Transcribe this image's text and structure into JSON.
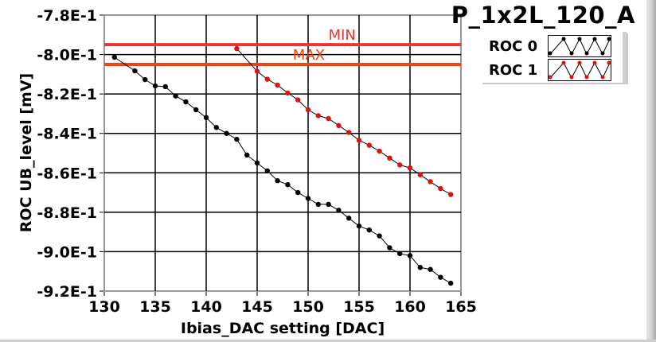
{
  "chart_data": {
    "type": "line",
    "title": "P_1x2L_120_A",
    "xlabel": "Ibias_DAC setting [DAC]",
    "ylabel": "ROC UB_level [mV]",
    "xlim": [
      130,
      165
    ],
    "ylim": [
      -0.92,
      -0.78
    ],
    "grid": true,
    "x_ticks": [
      130,
      135,
      140,
      145,
      150,
      155,
      160,
      165
    ],
    "x_tick_labels": [
      "130",
      "135",
      "140",
      "145",
      "150",
      "155",
      "160",
      "165"
    ],
    "y_ticks": [
      -0.78,
      -0.8,
      -0.82,
      -0.84,
      -0.86,
      -0.88,
      -0.9,
      -0.92
    ],
    "y_tick_labels": [
      "-7.8E-1",
      "-8.0E-1",
      "-8.2E-1",
      "-8.4E-1",
      "-8.6E-1",
      "-8.8E-1",
      "-9.0E-1",
      "-9.2E-1"
    ],
    "legend_position": "top-right",
    "series": [
      {
        "name": "ROC 0",
        "color": "#000000",
        "x": [
          131,
          133,
          134,
          135,
          136,
          137,
          138,
          139,
          140,
          141,
          142,
          143,
          144,
          145,
          146,
          147,
          148,
          149,
          150,
          151,
          152,
          153,
          154,
          155,
          156,
          157,
          158,
          159,
          160,
          161,
          162,
          163,
          164
        ],
        "y": [
          -0.8014,
          -0.8083,
          -0.8127,
          -0.8159,
          -0.8163,
          -0.821,
          -0.824,
          -0.828,
          -0.832,
          -0.837,
          -0.84,
          -0.843,
          -0.851,
          -0.855,
          -0.859,
          -0.864,
          -0.866,
          -0.87,
          -0.873,
          -0.876,
          -0.876,
          -0.879,
          -0.883,
          -0.887,
          -0.889,
          -0.892,
          -0.898,
          -0.901,
          -0.902,
          -0.908,
          -0.909,
          -0.913,
          -0.916
        ]
      },
      {
        "name": "ROC 1",
        "color": "#e01010",
        "x": [
          143,
          145,
          146,
          147,
          148,
          149,
          150,
          151,
          152,
          153,
          154,
          155,
          156,
          157,
          158,
          159,
          160,
          161,
          162,
          163,
          164
        ],
        "y": [
          -0.797,
          -0.8085,
          -0.8125,
          -0.8155,
          -0.8195,
          -0.823,
          -0.828,
          -0.831,
          -0.8325,
          -0.836,
          -0.8395,
          -0.8435,
          -0.846,
          -0.849,
          -0.8525,
          -0.856,
          -0.8575,
          -0.861,
          -0.8645,
          -0.868,
          -0.871
        ]
      }
    ],
    "limits": [
      {
        "name": "MIN",
        "value": -0.795,
        "color": "#ee3333",
        "label_x": 152
      },
      {
        "name": "MAX",
        "value": -0.805,
        "color": "#ee4411",
        "label_x": 148.5
      }
    ]
  },
  "legend": {
    "items": [
      {
        "label": "ROC 0",
        "color": "#000000"
      },
      {
        "label": "ROC 1",
        "color": "#e01010"
      }
    ]
  }
}
